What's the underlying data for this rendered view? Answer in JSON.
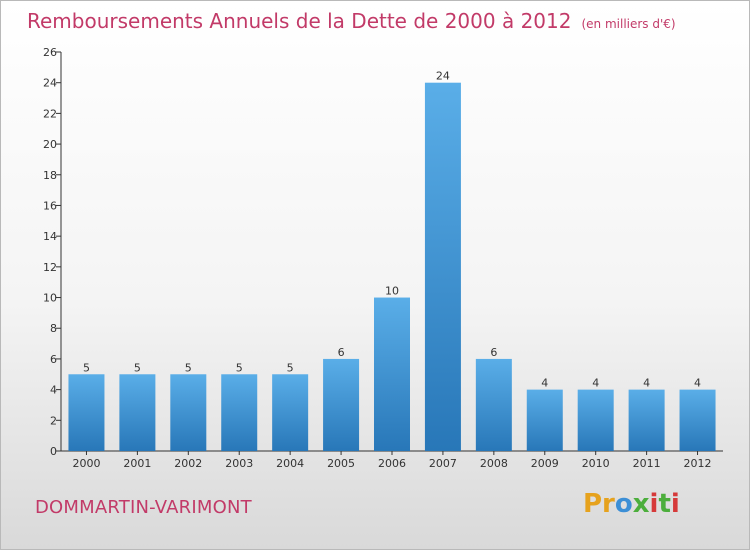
{
  "header": {
    "title": "Remboursements Annuels de la Dette de 2000 à 2012",
    "unit": "(en milliers d'€)"
  },
  "footer": {
    "city": "DOMMARTIN-VARIMONT",
    "logo_text": "Proxiti"
  },
  "colors": {
    "title": "#c23a68",
    "bar_light": "#5aaee8",
    "bar_dark": "#2877b8",
    "axis": "#333333"
  },
  "chart_data": {
    "type": "bar",
    "title": "Remboursements Annuels de la Dette de 2000 à 2012",
    "xlabel": "",
    "ylabel": "",
    "categories": [
      "2000",
      "2001",
      "2002",
      "2003",
      "2004",
      "2005",
      "2006",
      "2007",
      "2008",
      "2009",
      "2010",
      "2011",
      "2012"
    ],
    "values": [
      5,
      5,
      5,
      5,
      5,
      6,
      10,
      24,
      6,
      4,
      4,
      4,
      4
    ],
    "ylim": [
      0,
      26
    ],
    "yticks": [
      0,
      2,
      4,
      6,
      8,
      10,
      12,
      14,
      16,
      18,
      20,
      22,
      24,
      26
    ],
    "grid": false,
    "legend": "none"
  }
}
